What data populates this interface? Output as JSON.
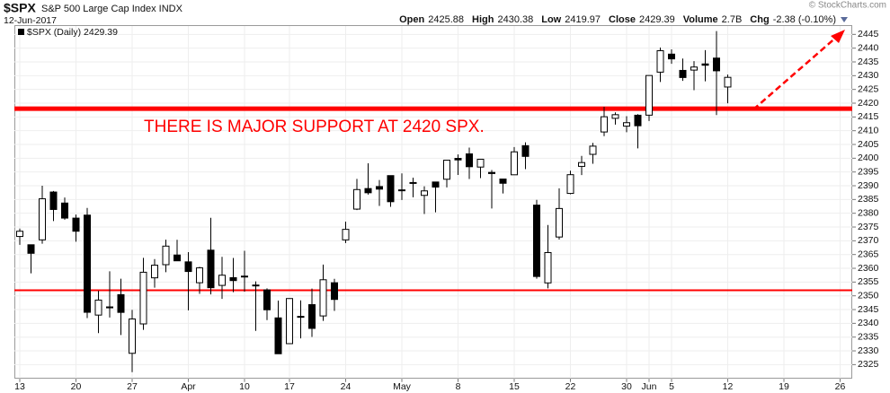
{
  "chart_data": {
    "type": "candlestick",
    "symbol": "$SPX",
    "name": "S&P 500 Large Cap Index INDX",
    "date": "12-Jun-2017",
    "quote": [
      {
        "label": "Open",
        "value": "2425.88"
      },
      {
        "label": "High",
        "value": "2430.38"
      },
      {
        "label": "Low",
        "value": "2419.97"
      },
      {
        "label": "Close",
        "value": "2429.39"
      },
      {
        "label": "Volume",
        "value": "2.7B"
      },
      {
        "label": "Chg",
        "value": "-2.38 (-0.10%)"
      }
    ],
    "copyright": "© StockCharts.com",
    "legend": "$SPX (Daily) 2429.39",
    "annotation": "THERE IS MAJOR SUPPORT AT 2420 SPX.",
    "support_lines": [
      2418,
      2352
    ],
    "support_color": "#ff0000",
    "candle_color": "#000000",
    "grid": true,
    "categories": [
      "13",
      null,
      null,
      null,
      null,
      "20",
      null,
      null,
      null,
      null,
      "27",
      null,
      null,
      null,
      null,
      "Apr",
      null,
      null,
      null,
      null,
      "10",
      null,
      null,
      null,
      "17",
      null,
      null,
      null,
      null,
      "24",
      null,
      null,
      null,
      null,
      "May",
      null,
      null,
      null,
      null,
      "8",
      null,
      null,
      null,
      null,
      "15",
      null,
      null,
      null,
      null,
      "22",
      null,
      null,
      null,
      null,
      "30",
      null,
      "Jun",
      null,
      "5",
      null,
      null,
      null,
      null,
      "12",
      null,
      null,
      null,
      null,
      "19",
      null,
      null,
      null,
      null,
      "26",
      null
    ],
    "open": [
      2371.56,
      2368.55,
      2370.34,
      2387.71,
      2383.71,
      2378.24,
      2379.32,
      2343.0,
      2345.97,
      2350.42,
      2329.11,
      2339.79,
      2356.54,
      2361.31,
      2364.82,
      2362.34,
      2354.76,
      2366.59,
      2353.79,
      2356.59,
      2357.16,
      2353.92,
      2352.15,
      2341.98,
      2332.62,
      2342.53,
      2346.79,
      2342.69,
      2354.74,
      2370.33,
      2381.51,
      2388.98,
      2389.7,
      2393.68,
      2388.5,
      2391.05,
      2386.5,
      2391.36,
      2392.37,
      2399.94,
      2401.58,
      2396.79,
      2394.84,
      2392.44,
      2393.98,
      2404.55,
      2382.95,
      2354.69,
      2371.37,
      2387.21,
      2397.04,
      2401.41,
      2409.54,
      2414.5,
      2411.67,
      2415.63,
      2415.65,
      2431.28,
      2437.83,
      2431.92,
      2432.03,
      2434.27,
      2436.39,
      2425.88,
      null,
      null,
      null,
      null,
      null,
      null,
      null,
      null,
      null,
      null,
      null
    ],
    "high": [
      2374.42,
      2368.55,
      2390.01,
      2388.1,
      2385.71,
      2379.55,
      2381.93,
      2351.81,
      2358.92,
      2356.22,
      2344.9,
      2363.78,
      2363.36,
      2370.42,
      2370.35,
      2365.87,
      2360.53,
      2378.36,
      2364.16,
      2363.76,
      2366.37,
      2355.22,
      2352.72,
      2348.26,
      2349.14,
      2348.35,
      2352.63,
      2361.37,
      2356.18,
      2376.98,
      2392.48,
      2398.16,
      2392.1,
      2393.68,
      2394.49,
      2392.93,
      2389.82,
      2391.43,
      2399.29,
      2401.36,
      2403.87,
      2399.74,
      2395.72,
      2392.44,
      2404.05,
      2405.77,
      2384.87,
      2375.74,
      2389.06,
      2395.46,
      2400.85,
      2405.58,
      2418.71,
      2416.68,
      2415.26,
      2415.99,
      2430.06,
      2440.23,
      2439.55,
      2436.21,
      2435.28,
      2439.27,
      2446.2,
      2430.38,
      null,
      null,
      null,
      null,
      null,
      null,
      null,
      null,
      null,
      null,
      null
    ],
    "low": [
      2368.52,
      2358.18,
      2368.94,
      2377.18,
      2377.64,
      2369.66,
      2341.9,
      2336.45,
      2342.13,
      2335.74,
      2322.25,
      2337.63,
      2352.94,
      2358.58,
      2362.6,
      2344.73,
      2350.72,
      2350.52,
      2348.9,
      2351.31,
      2351.5,
      2337.25,
      2341.18,
      2328.95,
      2332.51,
      2334.54,
      2335.05,
      2340.91,
      2344.51,
      2369.19,
      2381.15,
      2386.78,
      2382.68,
      2382.36,
      2384.83,
      2385.82,
      2379.75,
      2380.35,
      2389.38,
      2393.92,
      2392.44,
      2392.79,
      2381.74,
      2387.19,
      2393.94,
      2396.05,
      2356.21,
      2352.72,
      2370.43,
      2386.92,
      2393.88,
      2397.99,
      2408.01,
      2412.2,
      2409.43,
      2403.59,
      2413.54,
      2427.71,
      2434.32,
      2428.12,
      2424.75,
      2427.94,
      2415.7,
      2419.97,
      null,
      null,
      null,
      null,
      null,
      null,
      null,
      null,
      null,
      null,
      null
    ],
    "close": [
      2373.47,
      2365.45,
      2385.26,
      2381.38,
      2378.25,
      2373.47,
      2344.02,
      2348.45,
      2345.96,
      2343.98,
      2341.59,
      2358.57,
      2361.13,
      2368.06,
      2362.72,
      2358.84,
      2360.16,
      2352.95,
      2357.49,
      2355.54,
      2357.16,
      2353.78,
      2344.93,
      2328.95,
      2349.01,
      2342.19,
      2338.17,
      2355.84,
      2348.69,
      2374.15,
      2388.61,
      2387.45,
      2388.77,
      2384.2,
      2388.33,
      2391.17,
      2388.13,
      2389.52,
      2399.29,
      2399.38,
      2396.92,
      2399.63,
      2394.44,
      2390.9,
      2402.32,
      2400.67,
      2357.03,
      2365.72,
      2381.73,
      2394.02,
      2398.42,
      2404.39,
      2415.07,
      2415.82,
      2412.91,
      2411.8,
      2430.06,
      2439.07,
      2436.1,
      2429.33,
      2433.14,
      2433.79,
      2431.77,
      2429.39,
      null,
      null,
      null,
      null,
      null,
      null,
      null,
      null,
      null,
      null,
      null
    ],
    "ylim": [
      2320,
      2450
    ],
    "yticks": [
      2325,
      2330,
      2335,
      2340,
      2345,
      2350,
      2355,
      2360,
      2365,
      2370,
      2375,
      2380,
      2385,
      2390,
      2395,
      2400,
      2405,
      2410,
      2415,
      2420,
      2425,
      2430,
      2435,
      2440,
      2445
    ]
  }
}
